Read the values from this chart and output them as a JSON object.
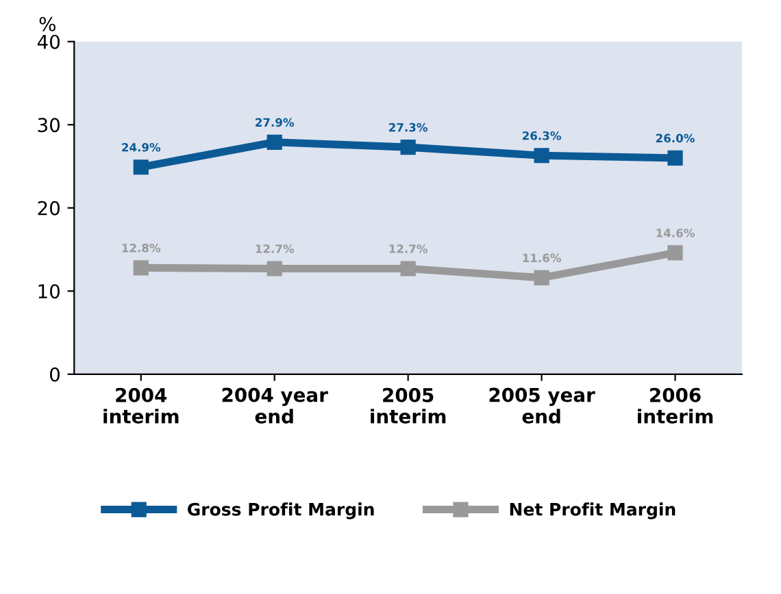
{
  "chart_data": {
    "type": "line",
    "ylabel": "%",
    "categories": [
      "2004\ninterim",
      "2004 year\nend",
      "2005\ninterim",
      "2005 year\nend",
      "2006\ninterim"
    ],
    "series": [
      {
        "name": "Gross Profit Margin",
        "color": "#0b5a96",
        "values": [
          24.9,
          27.9,
          27.3,
          26.3,
          26.0
        ],
        "value_labels": [
          "24.9%",
          "27.9%",
          "27.3%",
          "26.3%",
          "26.0%"
        ]
      },
      {
        "name": "Net Profit Margin",
        "color": "#999999",
        "values": [
          12.8,
          12.7,
          12.7,
          11.6,
          14.6
        ],
        "value_labels": [
          "12.8%",
          "12.7%",
          "12.7%",
          "11.6%",
          "14.6%"
        ]
      }
    ],
    "ylim": [
      0,
      40
    ],
    "yticks": [
      0,
      10,
      20,
      30,
      40
    ],
    "grid": false,
    "legend": "bottom",
    "marker": "square",
    "line_style": "solid"
  }
}
